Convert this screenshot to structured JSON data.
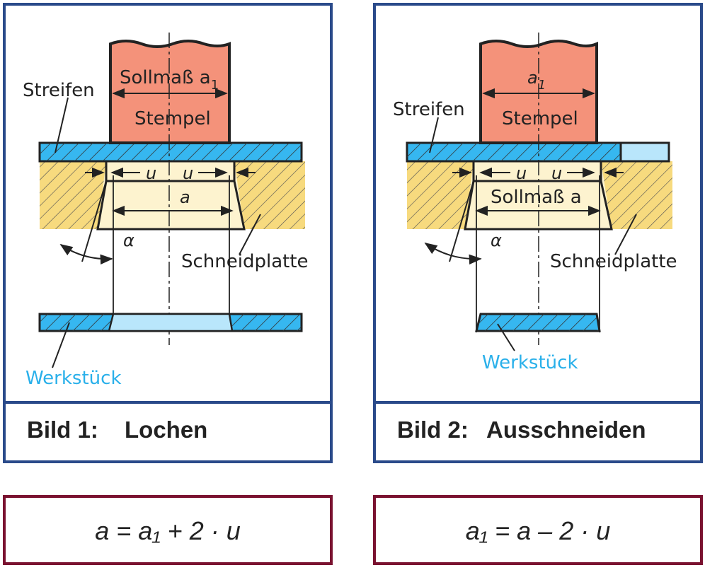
{
  "figure1": {
    "caption_number": "Bild 1:",
    "caption_name": "Lochen",
    "label_streifen": "Streifen",
    "label_sollmass": "Sollmaß a",
    "label_sollmass_sub": "1",
    "label_stempel": "Stempel",
    "label_u_left": "u",
    "label_u_right": "u",
    "label_a": "a",
    "label_alpha": "α",
    "label_schneidplatte": "Schneidplatte",
    "label_werkstueck": "Werkstück",
    "formula": "a = a₁ + 2 · u"
  },
  "figure2": {
    "caption_number": "Bild 2:",
    "caption_name": "Ausschneiden",
    "label_streifen": "Streifen",
    "label_a1": "a",
    "label_a1_sub": "1",
    "label_stempel": "Stempel",
    "label_u_left": "u",
    "label_u_right": "u",
    "label_sollmass": "Sollmaß a",
    "label_alpha": "α",
    "label_schneidplatte": "Schneidplatte",
    "label_werkstueck": "Werkstück",
    "formula": "a₁ = a – 2 · u"
  },
  "colors": {
    "frame": "#2a4a8a",
    "formula_frame": "#7a1230",
    "punch": "#f4927a",
    "strip": "#36b7f0",
    "strip_light": "#b9e6fb",
    "die": "#f7da7e",
    "die_opening": "#fdf3cf",
    "label_blue": "#2ab0ea"
  }
}
